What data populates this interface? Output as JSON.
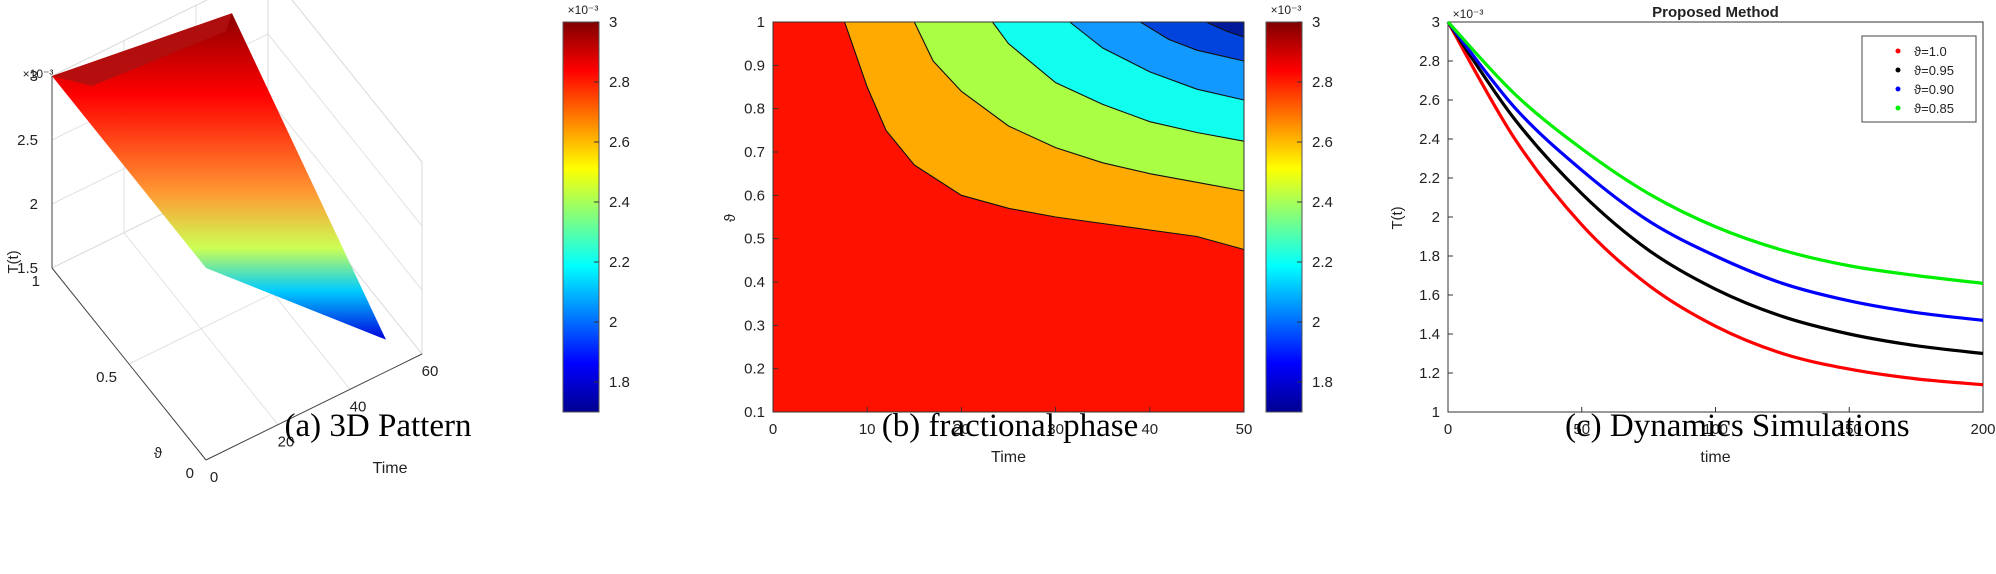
{
  "captions": [
    "(a) 3D Pattern",
    "(b) fractional phase",
    "(c) Dynamics Simulations"
  ],
  "colormap_stops": [
    "#00008f",
    "#0000ff",
    "#0080ff",
    "#00ffff",
    "#80ff80",
    "#ffff00",
    "#ff8000",
    "#ff0000",
    "#800000"
  ],
  "chart_data": [
    {
      "id": "a",
      "type": "surface",
      "title": "",
      "xlabel": "Time",
      "ylabel": "ϑ",
      "zlabel": "T(t)",
      "z_exponent": "×10⁻³",
      "xlim": [
        0,
        60
      ],
      "ylim": [
        0,
        1
      ],
      "zlim": [
        1.5,
        3
      ],
      "x_ticks": [
        "0",
        "20",
        "40",
        "60"
      ],
      "y_ticks": [
        "0",
        "0.5",
        "1"
      ],
      "z_ticks": [
        "1.5",
        "2",
        "2.5",
        "3"
      ],
      "corner_values": {
        "t0_theta1": 3.0,
        "t0_theta0": 3.0,
        "t50_theta1": 2.8,
        "t50_theta0": 1.75
      },
      "colorbar": {
        "exponent": "×10⁻³",
        "range": [
          1.7,
          3.0
        ],
        "ticks": [
          "1.8",
          "2",
          "2.2",
          "2.4",
          "2.6",
          "2.8",
          "3"
        ]
      }
    },
    {
      "id": "b",
      "type": "contour",
      "title": "",
      "xlabel": "Time",
      "ylabel": "ϑ",
      "xlim": [
        0,
        50
      ],
      "ylim": [
        0.1,
        1
      ],
      "x_ticks": [
        "0",
        "10",
        "20",
        "30",
        "40",
        "50"
      ],
      "y_ticks": [
        "0.1",
        "0.2",
        "0.3",
        "0.4",
        "0.5",
        "0.6",
        "0.7",
        "0.8",
        "0.9",
        "1"
      ],
      "levels": [
        {
          "fill": "#ff1100",
          "boundary": [
            [
              7.6,
              1.0
            ],
            [
              10,
              0.85
            ],
            [
              12,
              0.75
            ],
            [
              15,
              0.67
            ],
            [
              20,
              0.6
            ],
            [
              25,
              0.57
            ],
            [
              30,
              0.55
            ],
            [
              35,
              0.535
            ],
            [
              40,
              0.52
            ],
            [
              45,
              0.505
            ],
            [
              50,
              0.475
            ]
          ]
        },
        {
          "fill": "#ffaa00",
          "boundary": [
            [
              15,
              1.0
            ],
            [
              17,
              0.91
            ],
            [
              20,
              0.84
            ],
            [
              25,
              0.76
            ],
            [
              30,
              0.71
            ],
            [
              35,
              0.675
            ],
            [
              40,
              0.65
            ],
            [
              45,
              0.63
            ],
            [
              50,
              0.61
            ]
          ]
        },
        {
          "fill": "#aaff44",
          "boundary": [
            [
              23.3,
              1.0
            ],
            [
              25,
              0.95
            ],
            [
              30,
              0.86
            ],
            [
              35,
              0.81
            ],
            [
              40,
              0.77
            ],
            [
              45,
              0.745
            ],
            [
              50,
              0.725
            ]
          ]
        },
        {
          "fill": "#11ffee",
          "boundary": [
            [
              31.5,
              1.0
            ],
            [
              35,
              0.94
            ],
            [
              40,
              0.885
            ],
            [
              45,
              0.845
            ],
            [
              50,
              0.82
            ]
          ]
        },
        {
          "fill": "#1199ff",
          "boundary": [
            [
              39,
              1.0
            ],
            [
              42,
              0.96
            ],
            [
              45,
              0.935
            ],
            [
              48,
              0.92
            ],
            [
              50,
              0.91
            ]
          ]
        },
        {
          "fill": "#0044dd",
          "boundary": [
            [
              46,
              1.0
            ],
            [
              48,
              0.98
            ],
            [
              50,
              0.965
            ]
          ]
        }
      ],
      "colorbar": {
        "exponent": "×10⁻³",
        "range": [
          1.7,
          3.0
        ],
        "ticks": [
          "1.8",
          "2",
          "2.2",
          "2.4",
          "2.6",
          "2.8",
          "3"
        ]
      }
    },
    {
      "id": "c",
      "type": "line",
      "title": "Proposed Method",
      "xlabel": "time",
      "ylabel": "T(t)",
      "y_exponent": "×10⁻³",
      "xlim": [
        0,
        200
      ],
      "ylim": [
        1,
        3
      ],
      "x_ticks": [
        "0",
        "50",
        "100",
        "150",
        "200"
      ],
      "y_ticks": [
        "1",
        "1.2",
        "1.4",
        "1.6",
        "1.8",
        "2",
        "2.2",
        "2.4",
        "2.6",
        "2.8",
        "3"
      ],
      "legend_position": "top-right",
      "x": [
        0,
        25,
        50,
        75,
        100,
        125,
        150,
        175,
        200
      ],
      "series": [
        {
          "name": "ϑ=1.0",
          "color": "#ff0000",
          "values": [
            3.0,
            2.4,
            1.96,
            1.65,
            1.44,
            1.3,
            1.22,
            1.17,
            1.14
          ]
        },
        {
          "name": "ϑ=0.95",
          "color": "#000000",
          "values": [
            3.0,
            2.5,
            2.12,
            1.83,
            1.63,
            1.49,
            1.4,
            1.34,
            1.3
          ]
        },
        {
          "name": "ϑ=0.90",
          "color": "#0000ff",
          "values": [
            3.0,
            2.56,
            2.24,
            1.98,
            1.8,
            1.66,
            1.57,
            1.51,
            1.47
          ]
        },
        {
          "name": "ϑ=0.85",
          "color": "#00ee00",
          "values": [
            3.0,
            2.63,
            2.35,
            2.12,
            1.95,
            1.83,
            1.75,
            1.7,
            1.66
          ]
        }
      ]
    }
  ]
}
